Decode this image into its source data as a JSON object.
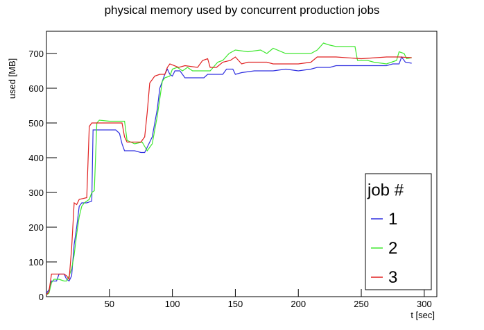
{
  "chart_data": {
    "type": "line",
    "title": "physical memory used by concurrent production jobs",
    "x_label": "t [sec]",
    "y_label": "used [MB]",
    "xlim": [
      0,
      310
    ],
    "ylim": [
      0,
      764
    ],
    "xticks": [
      50,
      100,
      150,
      200,
      250,
      300
    ],
    "yticks": [
      0,
      100,
      200,
      300,
      400,
      500,
      600,
      700
    ],
    "legend_title": "job #",
    "legend_position": "lower right",
    "series": [
      {
        "name": "1",
        "color": "#3030e0",
        "x": [
          0,
          2,
          4,
          8,
          10,
          14,
          16,
          18,
          20,
          22,
          24,
          26,
          28,
          32,
          36,
          37,
          40,
          50,
          55,
          58,
          60,
          62,
          70,
          75,
          78,
          80,
          84,
          88,
          90,
          94,
          96,
          98,
          100,
          102,
          106,
          110,
          120,
          125,
          128,
          140,
          143,
          148,
          150,
          155,
          165,
          180,
          190,
          200,
          210,
          215,
          225,
          230,
          250,
          270,
          275,
          280,
          282,
          285,
          290
        ],
        "values": [
          10,
          20,
          45,
          45,
          65,
          65,
          50,
          45,
          60,
          150,
          200,
          260,
          270,
          270,
          275,
          480,
          480,
          480,
          480,
          470,
          440,
          420,
          420,
          415,
          415,
          430,
          460,
          540,
          600,
          640,
          655,
          640,
          635,
          650,
          650,
          630,
          630,
          630,
          640,
          640,
          655,
          655,
          640,
          645,
          650,
          650,
          655,
          650,
          655,
          660,
          660,
          665,
          665,
          665,
          670,
          670,
          690,
          675,
          672
        ]
      },
      {
        "name": "2",
        "color": "#40e830",
        "x": [
          0,
          2,
          4,
          6,
          10,
          14,
          16,
          18,
          20,
          22,
          24,
          26,
          28,
          30,
          34,
          36,
          38,
          40,
          42,
          50,
          62,
          64,
          70,
          76,
          80,
          84,
          86,
          88,
          90,
          92,
          94,
          98,
          100,
          104,
          108,
          112,
          116,
          130,
          136,
          140,
          145,
          150,
          160,
          170,
          175,
          180,
          190,
          200,
          210,
          215,
          220,
          224,
          230,
          245,
          247,
          255,
          260,
          270,
          278,
          280,
          284,
          286,
          290
        ],
        "values": [
          5,
          10,
          40,
          50,
          50,
          45,
          45,
          60,
          80,
          120,
          180,
          230,
          260,
          270,
          280,
          300,
          305,
          500,
          508,
          505,
          505,
          450,
          440,
          445,
          420,
          440,
          480,
          520,
          570,
          620,
          630,
          635,
          655,
          660,
          650,
          660,
          650,
          650,
          675,
          680,
          700,
          710,
          705,
          710,
          700,
          715,
          700,
          700,
          700,
          710,
          730,
          725,
          720,
          720,
          680,
          680,
          675,
          670,
          680,
          705,
          700,
          685,
          688
        ]
      },
      {
        "name": "3",
        "color": "#e02020",
        "x": [
          0,
          2,
          4,
          10,
          14,
          16,
          18,
          20,
          22,
          24,
          26,
          32,
          34,
          36,
          60,
          62,
          64,
          75,
          78,
          80,
          82,
          84,
          86,
          90,
          94,
          96,
          98,
          105,
          110,
          120,
          124,
          128,
          130,
          135,
          140,
          146,
          150,
          155,
          160,
          175,
          180,
          200,
          210,
          215,
          230,
          250,
          270,
          280,
          290
        ],
        "values": [
          5,
          15,
          65,
          65,
          65,
          60,
          50,
          140,
          270,
          265,
          280,
          285,
          490,
          500,
          500,
          460,
          445,
          445,
          460,
          530,
          615,
          625,
          635,
          640,
          640,
          660,
          670,
          660,
          665,
          660,
          680,
          685,
          660,
          660,
          675,
          680,
          690,
          670,
          675,
          675,
          670,
          670,
          675,
          690,
          690,
          685,
          690,
          690,
          688
        ]
      }
    ]
  }
}
